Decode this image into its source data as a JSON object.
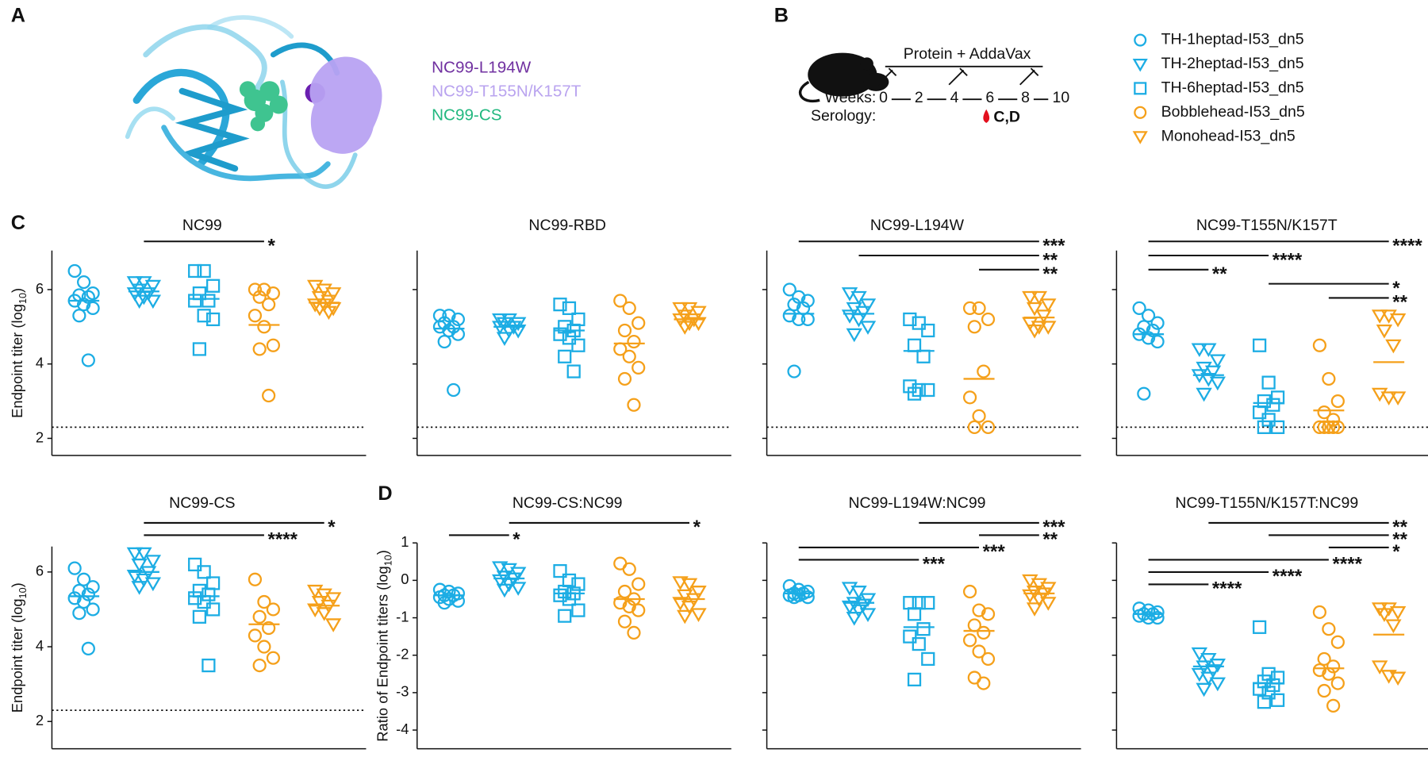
{
  "panel_labels": [
    "A",
    "B",
    "C",
    "D"
  ],
  "panel_a": {
    "labels": [
      {
        "text": "NC99-L194W",
        "color": "#7030a0"
      },
      {
        "text": "NC99-T155N/K157T",
        "color": "#b9a3ef"
      },
      {
        "text": "NC99-CS",
        "color": "#22b87f"
      }
    ]
  },
  "panel_b": {
    "treatment": "Protein + AddaVax",
    "weeks_label": "Weeks:",
    "weeks": [
      0,
      2,
      4,
      6,
      8,
      10
    ],
    "serology_label": "Serology:",
    "serology_point": "C,D"
  },
  "legend": [
    {
      "name": "TH-1heptad-I53_dn5",
      "color": "#1cade4",
      "marker": "circle"
    },
    {
      "name": "TH-2heptad-I53_dn5",
      "color": "#1cade4",
      "marker": "triangle"
    },
    {
      "name": "TH-6heptad-I53_dn5",
      "color": "#1cade4",
      "marker": "square"
    },
    {
      "name": "Bobblehead-I53_dn5",
      "color": "#f5a01a",
      "marker": "circle"
    },
    {
      "name": "Monohead-I53_dn5",
      "color": "#f5a01a",
      "marker": "triangle"
    }
  ],
  "chart_data": [
    {
      "type": "strip",
      "title": "NC99",
      "ylabel": [
        "Endpoint titer (log",
        "10",
        ")"
      ],
      "ylim": [
        1.54,
        7.05
      ],
      "yticks": [
        2,
        4,
        6
      ],
      "tick_labels": true,
      "detection_limit": 2.3,
      "groups": [
        {
          "values": [
            6.5,
            6.2,
            5.9,
            5.85,
            5.8,
            5.7,
            5.6,
            5.5,
            5.3,
            4.1
          ],
          "mean": 5.7
        },
        {
          "values": [
            6.2,
            6.2,
            6.1,
            6.0,
            5.9,
            5.9,
            5.8,
            5.7,
            5.7
          ],
          "mean": 5.95
        },
        {
          "values": [
            6.5,
            6.5,
            6.1,
            5.9,
            5.7,
            5.7,
            5.3,
            5.2,
            4.4
          ],
          "mean": 5.75
        },
        {
          "values": [
            6.0,
            6.0,
            5.9,
            5.8,
            5.6,
            5.3,
            5.0,
            4.5,
            4.4,
            3.15
          ],
          "mean": 5.05
        },
        {
          "values": [
            6.1,
            6.0,
            5.9,
            5.8,
            5.7,
            5.6,
            5.6,
            5.5,
            5.5,
            5.4
          ],
          "mean": 5.65
        }
      ],
      "comparisons": [
        {
          "from": "TH-2heptad-I53_dn5",
          "to": "Bobblehead-I53_dn5",
          "label": "*"
        }
      ]
    },
    {
      "type": "strip",
      "title": "NC99-RBD",
      "ylim": [
        1.54,
        7.05
      ],
      "yticks": [
        2,
        4,
        6
      ],
      "tick_labels": false,
      "detection_limit": 2.3,
      "groups": [
        {
          "values": [
            5.3,
            5.3,
            5.2,
            5.1,
            5.0,
            5.0,
            4.9,
            4.8,
            4.6,
            3.3
          ],
          "mean": 4.95
        },
        {
          "values": [
            5.2,
            5.2,
            5.1,
            5.1,
            5.0,
            5.0,
            4.9,
            4.9,
            4.7
          ],
          "mean": 5.0
        },
        {
          "values": [
            5.6,
            5.5,
            5.2,
            5.0,
            4.9,
            4.8,
            4.7,
            4.5,
            4.2,
            3.8
          ],
          "mean": 4.9
        },
        {
          "values": [
            5.7,
            5.5,
            5.1,
            4.9,
            4.6,
            4.4,
            4.2,
            3.9,
            3.6,
            2.9
          ],
          "mean": 4.55
        },
        {
          "values": [
            5.5,
            5.5,
            5.4,
            5.3,
            5.2,
            5.2,
            5.1,
            5.1,
            5.0
          ],
          "mean": 5.2
        }
      ],
      "comparisons": []
    },
    {
      "type": "strip",
      "title": "NC99-L194W",
      "ylim": [
        1.54,
        7.05
      ],
      "yticks": [
        2,
        4,
        6
      ],
      "tick_labels": false,
      "detection_limit": 2.3,
      "groups": [
        {
          "values": [
            6.0,
            5.8,
            5.7,
            5.6,
            5.5,
            5.3,
            5.2,
            5.2,
            3.8
          ],
          "mean": 5.35
        },
        {
          "values": [
            5.9,
            5.8,
            5.6,
            5.5,
            5.4,
            5.3,
            5.2,
            5.0,
            4.8
          ],
          "mean": 5.35
        },
        {
          "values": [
            5.2,
            5.1,
            4.9,
            4.5,
            4.2,
            3.4,
            3.3,
            3.3,
            3.2
          ],
          "mean": 4.35
        },
        {
          "values": [
            5.5,
            5.5,
            5.2,
            5.0,
            3.8,
            3.1,
            2.6,
            2.3,
            2.3
          ],
          "mean": 3.6
        },
        {
          "values": [
            5.8,
            5.8,
            5.6,
            5.5,
            5.3,
            5.1,
            5.0,
            5.0,
            4.9
          ],
          "mean": 5.25
        }
      ],
      "comparisons": [
        {
          "from": "TH-1heptad-I53_dn5",
          "to": "Monohead-I53_dn5",
          "label": "***"
        },
        {
          "from": "TH-2heptad-I53_dn5",
          "to": "Monohead-I53_dn5",
          "label": "**"
        },
        {
          "from": "Bobblehead-I53_dn5",
          "to": "Monohead-I53_dn5",
          "label": "**"
        }
      ]
    },
    {
      "type": "strip",
      "title": "NC99-T155N/K157T",
      "ylim": [
        1.54,
        7.05
      ],
      "yticks": [
        2,
        4,
        6
      ],
      "tick_labels": false,
      "detection_limit": 2.3,
      "groups": [
        {
          "values": [
            5.5,
            5.3,
            5.1,
            5.0,
            4.9,
            4.8,
            4.7,
            4.6,
            3.2
          ],
          "mean": 4.8
        },
        {
          "values": [
            4.4,
            4.4,
            4.1,
            3.9,
            3.8,
            3.7,
            3.6,
            3.5,
            3.2
          ],
          "mean": 3.7
        },
        {
          "values": [
            4.5,
            3.5,
            3.1,
            3.0,
            2.9,
            2.7,
            2.5,
            2.3,
            2.3
          ],
          "mean": 2.95
        },
        {
          "values": [
            4.5,
            3.6,
            3.0,
            2.7,
            2.5,
            2.3,
            2.3,
            2.3,
            2.3,
            2.3
          ],
          "mean": 2.75
        },
        {
          "values": [
            5.3,
            5.3,
            5.2,
            4.9,
            4.5,
            3.2,
            3.1,
            3.1
          ],
          "mean": 4.05
        }
      ],
      "comparisons": [
        {
          "from": "TH-1heptad-I53_dn5",
          "to": "Monohead-I53_dn5",
          "label": "****"
        },
        {
          "from": "TH-1heptad-I53_dn5",
          "to": "TH-6heptad-I53_dn5",
          "label": "****"
        },
        {
          "from": "TH-1heptad-I53_dn5",
          "to": "TH-2heptad-I53_dn5",
          "label": "**"
        },
        {
          "from": "TH-6heptad-I53_dn5",
          "to": "Monohead-I53_dn5",
          "label": "*"
        },
        {
          "from": "Bobblehead-I53_dn5",
          "to": "Monohead-I53_dn5",
          "label": "**"
        }
      ]
    },
    {
      "type": "strip",
      "title": "NC99-CS",
      "ylabel": [
        "Endpoint titer (log",
        "10",
        ")"
      ],
      "ylim": [
        1.27,
        6.68
      ],
      "yticks": [
        2,
        4,
        6
      ],
      "tick_labels": true,
      "detection_limit": 2.3,
      "groups": [
        {
          "values": [
            6.1,
            5.8,
            5.6,
            5.5,
            5.4,
            5.3,
            5.2,
            5.0,
            4.9,
            3.95
          ],
          "mean": 5.35
        },
        {
          "values": [
            6.5,
            6.5,
            6.3,
            6.2,
            6.0,
            5.9,
            5.8,
            5.7,
            5.6
          ],
          "mean": 6.0
        },
        {
          "values": [
            6.2,
            6.0,
            5.7,
            5.5,
            5.4,
            5.3,
            5.2,
            5.0,
            4.8,
            3.5
          ],
          "mean": 5.35
        },
        {
          "values": [
            5.8,
            5.2,
            5.0,
            4.8,
            4.5,
            4.3,
            4.0,
            3.7,
            3.5
          ],
          "mean": 4.6
        },
        {
          "values": [
            5.5,
            5.4,
            5.3,
            5.2,
            5.1,
            5.0,
            4.9,
            4.6
          ],
          "mean": 5.1
        }
      ],
      "comparisons": [
        {
          "from": "TH-2heptad-I53_dn5",
          "to": "Monohead-I53_dn5",
          "label": "*"
        },
        {
          "from": "TH-2heptad-I53_dn5",
          "to": "Bobblehead-I53_dn5",
          "label": "****"
        }
      ]
    },
    {
      "type": "strip",
      "title": "NC99-CS:NC99",
      "ylabel": [
        "Ratio of Endpoint titers (log",
        "10",
        ")"
      ],
      "ylim": [
        -4.5,
        1.0
      ],
      "yticks": [
        1,
        0,
        -1,
        -2,
        -3,
        -4
      ],
      "tick_labels": true,
      "groups": [
        {
          "values": [
            -0.25,
            -0.3,
            -0.35,
            -0.4,
            -0.4,
            -0.45,
            -0.5,
            -0.55,
            -0.6
          ],
          "mean": -0.4
        },
        {
          "values": [
            0.35,
            0.3,
            0.2,
            0.1,
            0.05,
            0,
            -0.1,
            -0.2,
            -0.25
          ],
          "mean": 0.05
        },
        {
          "values": [
            0.25,
            0.0,
            -0.1,
            -0.3,
            -0.35,
            -0.4,
            -0.5,
            -0.8,
            -0.95
          ],
          "mean": -0.35
        },
        {
          "values": [
            0.45,
            0.3,
            -0.1,
            -0.3,
            -0.5,
            -0.6,
            -0.7,
            -0.8,
            -1.1,
            -1.4
          ],
          "mean": -0.5
        },
        {
          "values": [
            -0.05,
            -0.1,
            -0.3,
            -0.4,
            -0.5,
            -0.6,
            -0.7,
            -0.9,
            -0.95
          ],
          "mean": -0.5
        }
      ],
      "comparisons": [
        {
          "from": "TH-2heptad-I53_dn5",
          "to": "Monohead-I53_dn5",
          "label": "*"
        },
        {
          "from": "TH-1heptad-I53_dn5",
          "to": "TH-2heptad-I53_dn5",
          "label": "*"
        }
      ]
    },
    {
      "type": "strip",
      "title": "NC99-L194W:NC99",
      "ylim": [
        -4.5,
        1.0
      ],
      "yticks": [
        1,
        0,
        -1,
        -2,
        -3,
        -4
      ],
      "tick_labels": false,
      "groups": [
        {
          "values": [
            -0.15,
            -0.25,
            -0.3,
            -0.35,
            -0.35,
            -0.4,
            -0.4,
            -0.45,
            -0.45
          ],
          "mean": -0.35
        },
        {
          "values": [
            -0.2,
            -0.3,
            -0.5,
            -0.6,
            -0.65,
            -0.7,
            -0.8,
            -0.9,
            -1.0
          ],
          "mean": -0.6
        },
        {
          "values": [
            -0.6,
            -0.6,
            -0.6,
            -0.9,
            -1.3,
            -1.5,
            -1.7,
            -2.1,
            -2.65
          ],
          "mean": -1.25
        },
        {
          "values": [
            -0.3,
            -0.8,
            -0.9,
            -1.2,
            -1.4,
            -1.6,
            -1.9,
            -2.1,
            -2.6,
            -2.75
          ],
          "mean": -1.35
        },
        {
          "values": [
            0.0,
            -0.1,
            -0.2,
            -0.3,
            -0.35,
            -0.4,
            -0.5,
            -0.6,
            -0.75
          ],
          "mean": -0.35
        }
      ],
      "comparisons": [
        {
          "from": "TH-6heptad-I53_dn5",
          "to": "Monohead-I53_dn5",
          "label": "***"
        },
        {
          "from": "Bobblehead-I53_dn5",
          "to": "Monohead-I53_dn5",
          "label": "**"
        },
        {
          "from": "TH-1heptad-I53_dn5",
          "to": "Bobblehead-I53_dn5",
          "label": "***"
        },
        {
          "from": "TH-1heptad-I53_dn5",
          "to": "TH-6heptad-I53_dn5",
          "label": "***"
        }
      ]
    },
    {
      "type": "strip",
      "title": "NC99-T155N/K157T:NC99",
      "ylim": [
        -4.5,
        1.0
      ],
      "yticks": [
        1,
        0,
        -1,
        -2,
        -3,
        -4
      ],
      "tick_labels": false,
      "groups": [
        {
          "values": [
            -0.75,
            -0.8,
            -0.85,
            -0.9,
            -0.9,
            -0.95,
            -1.0,
            -1.0
          ],
          "mean": -0.9
        },
        {
          "values": [
            -1.95,
            -2.1,
            -2.25,
            -2.3,
            -2.4,
            -2.5,
            -2.6,
            -2.75,
            -2.9
          ],
          "mean": -2.3
        },
        {
          "values": [
            -1.25,
            -2.5,
            -2.6,
            -2.7,
            -2.8,
            -2.9,
            -3.0,
            -3.2,
            -3.25
          ],
          "mean": -2.75
        },
        {
          "values": [
            -0.85,
            -1.3,
            -1.65,
            -2.1,
            -2.3,
            -2.4,
            -2.5,
            -2.75,
            -2.95,
            -3.35
          ],
          "mean": -2.35
        },
        {
          "values": [
            -0.75,
            -0.75,
            -0.85,
            -0.9,
            -1.2,
            -2.3,
            -2.55,
            -2.6
          ],
          "mean": -1.45
        }
      ],
      "comparisons": [
        {
          "from": "TH-2heptad-I53_dn5",
          "to": "Monohead-I53_dn5",
          "label": "**"
        },
        {
          "from": "TH-6heptad-I53_dn5",
          "to": "Monohead-I53_dn5",
          "label": "**"
        },
        {
          "from": "Bobblehead-I53_dn5",
          "to": "Monohead-I53_dn5",
          "label": "*"
        },
        {
          "from": "TH-1heptad-I53_dn5",
          "to": "Bobblehead-I53_dn5",
          "label": "****"
        },
        {
          "from": "TH-1heptad-I53_dn5",
          "to": "TH-6heptad-I53_dn5",
          "label": "****"
        },
        {
          "from": "TH-1heptad-I53_dn5",
          "to": "TH-2heptad-I53_dn5",
          "label": "****"
        }
      ]
    }
  ]
}
